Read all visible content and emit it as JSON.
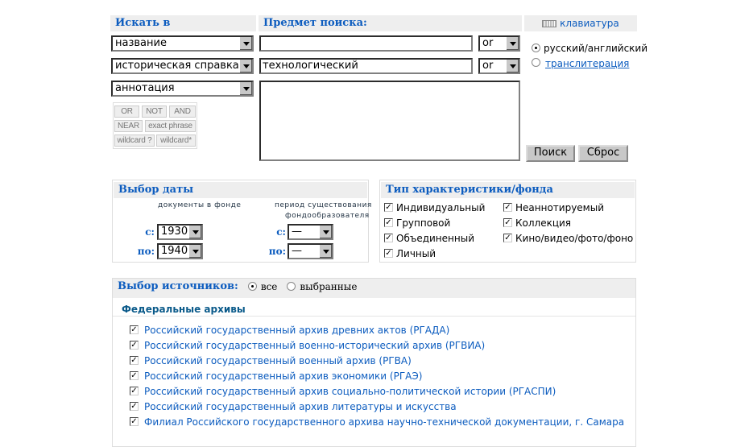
{
  "search": {
    "search_in_label": "Искать в",
    "subject_label": "Предмет поиска:",
    "keyboard_label": "клавиатура",
    "fields": [
      {
        "field": "название",
        "value": "",
        "operator": "or"
      },
      {
        "field": "историческая справка",
        "value": "технологический",
        "operator": "or"
      },
      {
        "field": "аннотация",
        "value": ""
      }
    ],
    "operators": [
      "OR",
      "NOT",
      "AND",
      "NEAR",
      "exact phrase",
      "wildcard ?",
      "wildcard*"
    ],
    "lang_options": [
      {
        "label": "русский/английский",
        "selected": true
      },
      {
        "label": "транслитерация",
        "selected": false
      }
    ],
    "search_button": "Поиск",
    "reset_button": "Сброс"
  },
  "date": {
    "title": "Выбор даты",
    "col1_label": "документы в фонде",
    "col2_label_1": "период существования",
    "col2_label_2": "фондообразователя",
    "from_label": "с:",
    "to_label": "по:",
    "doc_from": "1930",
    "doc_to": "1940",
    "period_from": "—",
    "period_to": "—"
  },
  "type": {
    "title": "Тип характеристики/фонда",
    "items": [
      {
        "label": "Индивидуальный",
        "checked": true
      },
      {
        "label": "Групповой",
        "checked": true
      },
      {
        "label": "Объединенный",
        "checked": true
      },
      {
        "label": "Личный",
        "checked": true
      },
      {
        "label": "Неаннотируемый",
        "checked": true
      },
      {
        "label": "Коллекция",
        "checked": true
      },
      {
        "label": "Кино/видео/фото/фоно",
        "checked": true
      }
    ]
  },
  "sources": {
    "title": "Выбор источников:",
    "opt_all": "все",
    "opt_selected": "выбранные",
    "all_selected": true,
    "group": "Федеральные архивы",
    "items": [
      "Российский государственный архив древних актов (РГАДА)",
      "Российский государственный военно-исторический архив (РГВИА)",
      "Российский государственный военный архив (РГВА)",
      "Российский государственный архив экономики (РГАЭ)",
      "Российский государственный архив социально-политической истории (РГАСПИ)",
      "Российский государственный архив литературы и искусства",
      "Филиал Российского государственного архива научно-технической документации, г. Самара"
    ]
  }
}
